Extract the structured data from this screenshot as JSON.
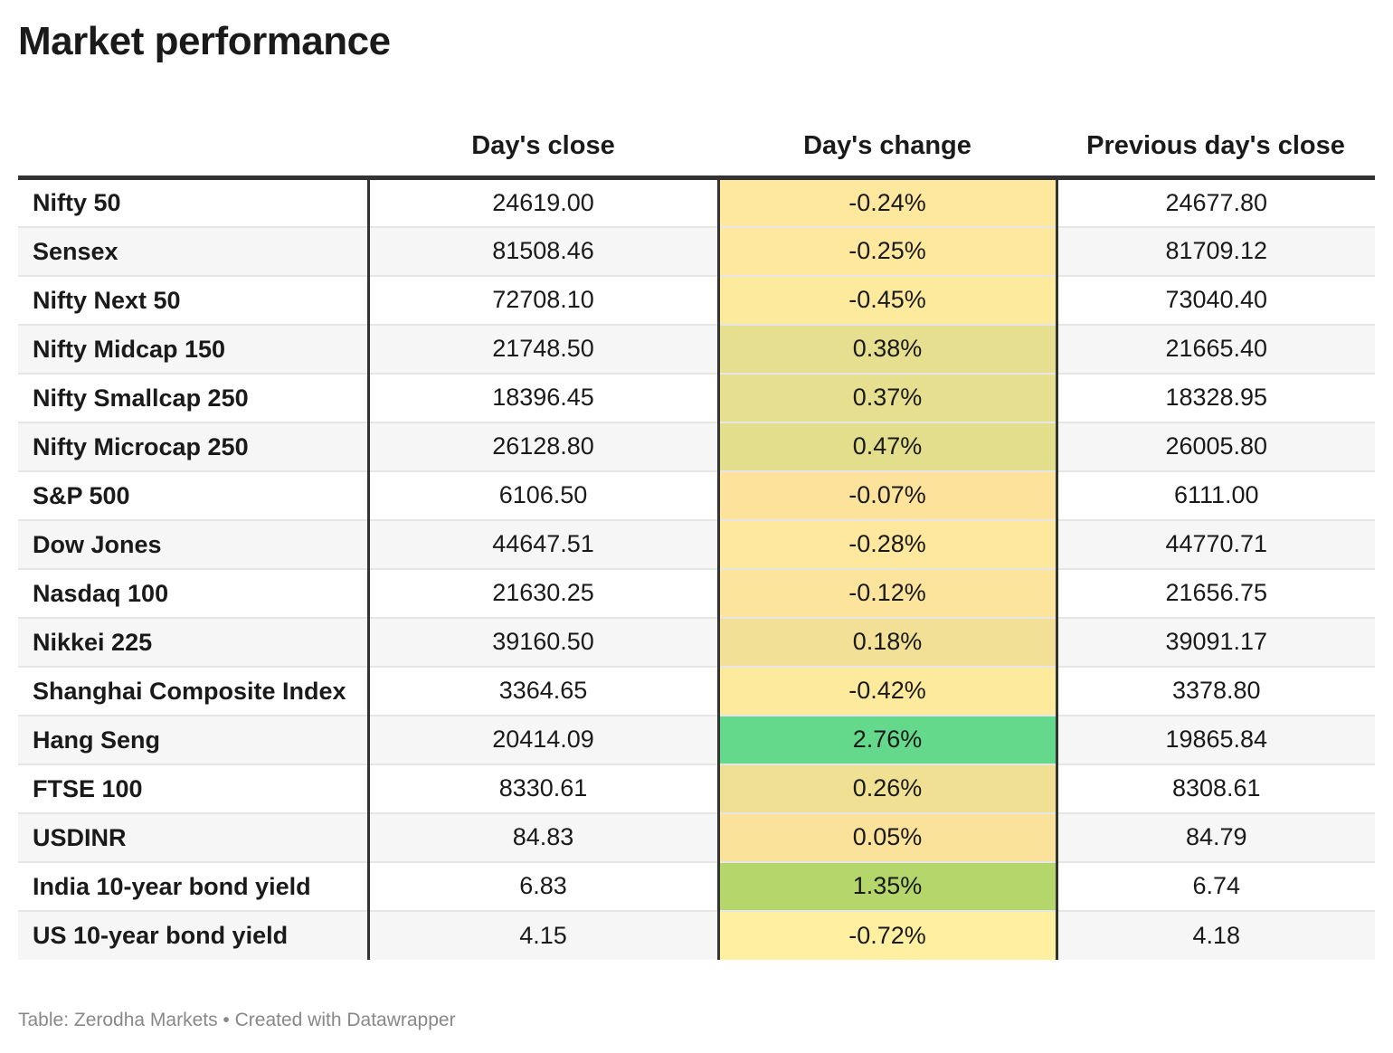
{
  "title": "Market performance",
  "footer": "Table: Zerodha Markets • Created with Datawrapper",
  "chart_data": {
    "type": "table",
    "columns": [
      "",
      "Day's close",
      "Day's change",
      "Previous day's close"
    ],
    "rows": [
      {
        "name": "Nifty 50",
        "close": "24619.00",
        "change": "-0.24%",
        "prev": "24677.80",
        "color": "#fde89e"
      },
      {
        "name": "Sensex",
        "close": "81508.46",
        "change": "-0.25%",
        "prev": "81709.12",
        "color": "#fde89e"
      },
      {
        "name": "Nifty Next 50",
        "close": "72708.10",
        "change": "-0.45%",
        "prev": "73040.40",
        "color": "#fdea9d"
      },
      {
        "name": "Nifty Midcap 150",
        "close": "21748.50",
        "change": "0.38%",
        "prev": "21665.40",
        "color": "#e6df8f"
      },
      {
        "name": "Nifty Smallcap 250",
        "close": "18396.45",
        "change": "0.37%",
        "prev": "18328.95",
        "color": "#e6df8f"
      },
      {
        "name": "Nifty Microcap 250",
        "close": "26128.80",
        "change": "0.47%",
        "prev": "26005.80",
        "color": "#e2de8b"
      },
      {
        "name": "S&P 500",
        "close": "6106.50",
        "change": "-0.07%",
        "prev": "6111.00",
        "color": "#fde29c"
      },
      {
        "name": "Dow Jones",
        "close": "44647.51",
        "change": "-0.28%",
        "prev": "44770.71",
        "color": "#fde89e"
      },
      {
        "name": "Nasdaq 100",
        "close": "21630.25",
        "change": "-0.12%",
        "prev": "21656.75",
        "color": "#fde49c"
      },
      {
        "name": "Nikkei 225",
        "close": "39160.50",
        "change": "0.18%",
        "prev": "39091.17",
        "color": "#f1e096"
      },
      {
        "name": "Shanghai Composite Index",
        "close": "3364.65",
        "change": "-0.42%",
        "prev": "3378.80",
        "color": "#fdea9d"
      },
      {
        "name": "Hang Seng",
        "close": "20414.09",
        "change": "2.76%",
        "prev": "19865.84",
        "color": "#64d98c"
      },
      {
        "name": "FTSE 100",
        "close": "8330.61",
        "change": "0.26%",
        "prev": "8308.61",
        "color": "#efe094"
      },
      {
        "name": "USDINR",
        "close": "84.83",
        "change": "0.05%",
        "prev": "84.79",
        "color": "#fbe29b"
      },
      {
        "name": "India 10-year bond yield",
        "close": "6.83",
        "change": "1.35%",
        "prev": "6.74",
        "color": "#b4d66b"
      },
      {
        "name": "US 10-year bond yield",
        "close": "4.15",
        "change": "-0.72%",
        "prev": "4.18",
        "color": "#fef0a0"
      }
    ]
  }
}
